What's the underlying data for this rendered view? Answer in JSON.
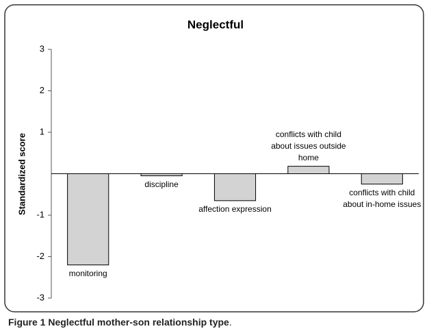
{
  "chart_data": {
    "type": "bar",
    "title": "Neglectful",
    "y_label": "Standardized score",
    "categories": [
      "monitoring",
      "discipline",
      "affection expression",
      "conflicts with child about issues outside home",
      "conflicts with child about in-home issues"
    ],
    "values": [
      -2.2,
      -0.05,
      -0.65,
      0.18,
      -0.25
    ],
    "color": "#d3d3d3",
    "ylim": [
      -3,
      3
    ],
    "yticks": [
      -3,
      -2,
      -1,
      1,
      2,
      3
    ]
  },
  "caption": {
    "label": "Figure 1",
    "text": "Neglectful mother-son relationship type",
    "end": "."
  }
}
